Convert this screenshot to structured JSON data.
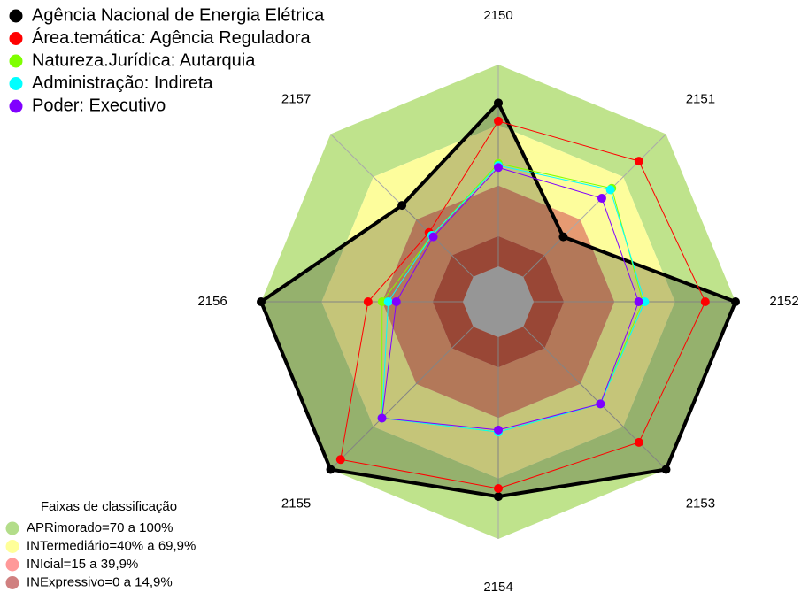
{
  "chart_data": {
    "type": "radar",
    "categories": [
      "2150",
      "2151",
      "2152",
      "2153",
      "2154",
      "2155",
      "2156",
      "2157"
    ],
    "rlim": [
      0,
      100
    ],
    "series": [
      {
        "name": "Agência Nacional de Energia Elétrica",
        "color": "#000000",
        "values": [
          81,
          28,
          100,
          100,
          79,
          100,
          100,
          50
        ]
      },
      {
        "name": "Área.temática: Agência Reguladora",
        "color": "#ff0000",
        "values": [
          72,
          81,
          85,
          81,
          75,
          93,
          47,
          31
        ]
      },
      {
        "name": "Natureza.Jurídica: Autarquia",
        "color": "#7fff00",
        "values": [
          51,
          62,
          54,
          54,
          47,
          64,
          40,
          29
        ]
      },
      {
        "name": "Administração: Indireta",
        "color": "#00ffff",
        "values": [
          50,
          61,
          55,
          54,
          47,
          64,
          37,
          29
        ]
      },
      {
        "name": "Poder: Executivo",
        "color": "#8000ff",
        "values": [
          49,
          55,
          52,
          54,
          46,
          64,
          33,
          28
        ]
      }
    ],
    "bands_title": "Faixas de classificação",
    "bands": [
      {
        "label": "APRimorado=70 a 100%",
        "range": [
          70,
          100
        ],
        "color": "#bfe38c",
        "legend_color": "#b3dd8a"
      },
      {
        "label": "INTermediário=40% a 69,9%",
        "range": [
          40,
          70
        ],
        "color": "#fdfd9c",
        "legend_color": "#ffff99"
      },
      {
        "label": "INIcial=15 a 39,9%",
        "range": [
          15,
          40
        ],
        "color": "#e69a72",
        "legend_color": "#ff9999"
      },
      {
        "label": "INExpressivo=0 a 14,9%",
        "range": [
          0,
          15
        ],
        "color": "#c45c46",
        "legend_color": "#d08080"
      }
    ]
  }
}
